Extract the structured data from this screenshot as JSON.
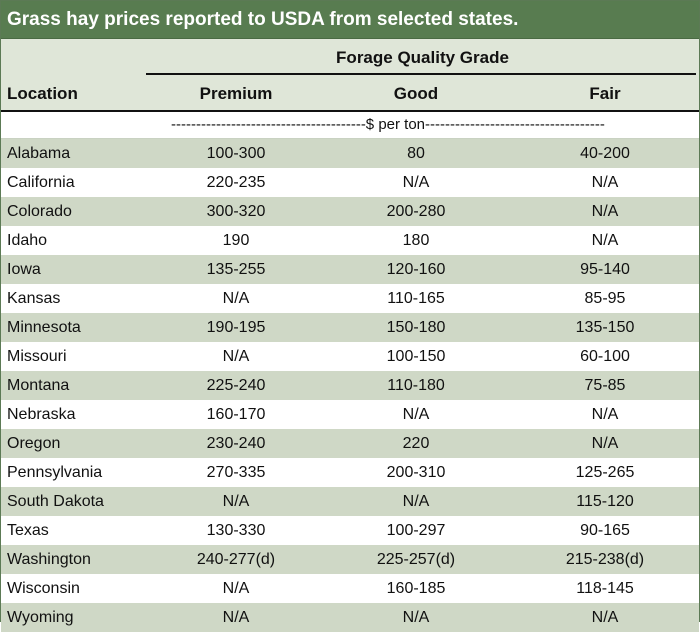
{
  "title": "Grass hay prices reported to USDA from selected states.",
  "group_label": "Forage Quality Grade",
  "columns": [
    "Location",
    "Premium",
    "Good",
    "Fair"
  ],
  "units_label": "---------------------------------------$ per ton------------------------------------",
  "rows": [
    {
      "location": "Alabama",
      "premium": "100-300",
      "good": "80",
      "fair": "40-200"
    },
    {
      "location": "California",
      "premium": "220-235",
      "good": "N/A",
      "fair": "N/A"
    },
    {
      "location": "Colorado",
      "premium": "300-320",
      "good": "200-280",
      "fair": "N/A"
    },
    {
      "location": "Idaho",
      "premium": "190",
      "good": "180",
      "fair": "N/A"
    },
    {
      "location": "Iowa",
      "premium": "135-255",
      "good": "120-160",
      "fair": "95-140"
    },
    {
      "location": "Kansas",
      "premium": "N/A",
      "good": "110-165",
      "fair": "85-95"
    },
    {
      "location": "Minnesota",
      "premium": "190-195",
      "good": "150-180",
      "fair": "135-150"
    },
    {
      "location": "Missouri",
      "premium": "N/A",
      "good": "100-150",
      "fair": "60-100"
    },
    {
      "location": "Montana",
      "premium": "225-240",
      "good": "110-180",
      "fair": "75-85"
    },
    {
      "location": "Nebraska",
      "premium": "160-170",
      "good": "N/A",
      "fair": "N/A"
    },
    {
      "location": "Oregon",
      "premium": "230-240",
      "good": "220",
      "fair": "N/A"
    },
    {
      "location": "Pennsylvania",
      "premium": "270-335",
      "good": "200-310",
      "fair": "125-265"
    },
    {
      "location": "South Dakota",
      "premium": "N/A",
      "good": "N/A",
      "fair": "115-120"
    },
    {
      "location": "Texas",
      "premium": "130-330",
      "good": "100-297",
      "fair": "90-165"
    },
    {
      "location": "Washington",
      "premium": "240-277(d)",
      "good": "225-257(d)",
      "fair": "215-238(d)"
    },
    {
      "location": "Wisconsin",
      "premium": "N/A",
      "good": "160-185",
      "fair": "118-145"
    },
    {
      "location": "Wyoming",
      "premium": "N/A",
      "good": "N/A",
      "fair": "N/A"
    }
  ]
}
